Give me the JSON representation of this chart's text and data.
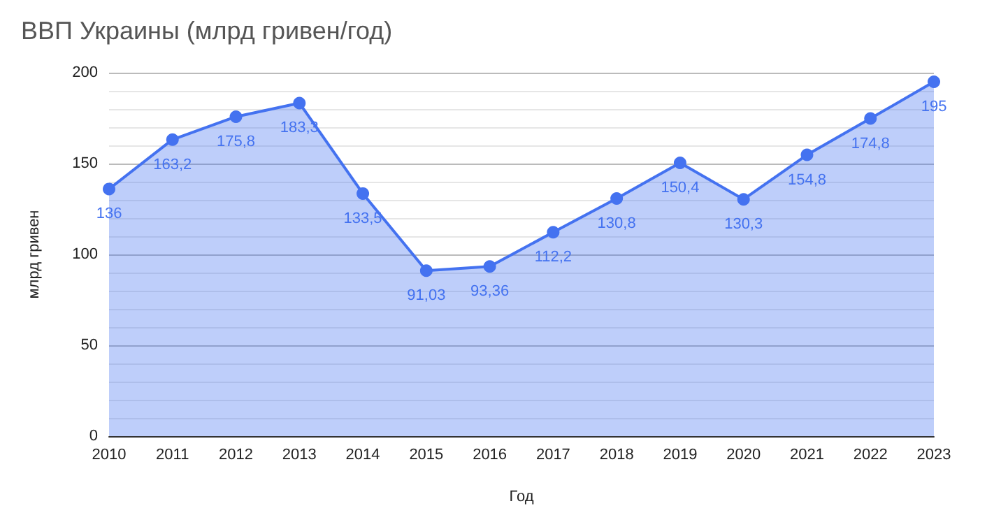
{
  "chart_data": {
    "type": "area",
    "title": "ВВП Украины (млрд гривен/год)",
    "xlabel": "Год",
    "ylabel": "млрд гривен",
    "categories": [
      "2010",
      "2011",
      "2012",
      "2013",
      "2014",
      "2015",
      "2016",
      "2017",
      "2018",
      "2019",
      "2020",
      "2021",
      "2022",
      "2023"
    ],
    "series": [
      {
        "color": "#4472f0",
        "values": [
          136,
          163.2,
          175.8,
          183.3,
          133.5,
          91.03,
          93.36,
          112.2,
          130.8,
          150.4,
          130.3,
          154.8,
          174.8,
          195
        ],
        "value_labels": [
          "136",
          "163,2",
          "175,8",
          "183,3",
          "133,5",
          "91,03",
          "93,36",
          "112,2",
          "130,8",
          "150,4",
          "130,3",
          "154,8",
          "174,8",
          "195"
        ]
      }
    ],
    "ylim": [
      0,
      200
    ],
    "yticks": [
      0,
      50,
      100,
      150,
      200
    ],
    "grid": "y",
    "marker": "circle"
  }
}
